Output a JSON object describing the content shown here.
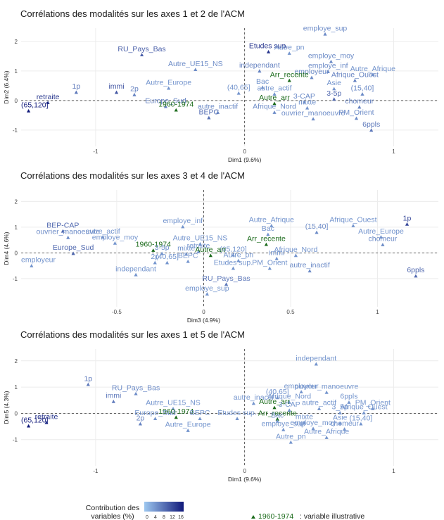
{
  "colors": {
    "low": "#9ec8f0",
    "high": "#10197a",
    "illustrative": "#1a6a1a"
  },
  "legend": {
    "title": "Contribution des variables (%)",
    "ticks": [
      "0",
      "4",
      "8",
      "12",
      "16"
    ],
    "illustrative_marker_label": "1960-1974",
    "illustrative_text": ": variable illustrative"
  },
  "chart_data": [
    {
      "type": "scatter",
      "title": "Corrélations des modalités sur les axes 1 et 2 de l'ACM",
      "xlabel": "Dim1 (9.6%)",
      "ylabel": "Dim2 (6.4%)",
      "xlim": [
        -1.5,
        1.3
      ],
      "ylim": [
        -1.55,
        2.45
      ],
      "xticks": [
        -1,
        0,
        1
      ],
      "yticks": [
        -1,
        0,
        1,
        2
      ],
      "points": [
        {
          "label": "employe_sup",
          "x": 0.54,
          "y": 2.25,
          "c": 0.35
        },
        {
          "label": "Etudes sup.",
          "x": 0.16,
          "y": 1.65,
          "c": 0.85
        },
        {
          "label": "Autre_pn",
          "x": 0.3,
          "y": 1.6,
          "c": 0.3
        },
        {
          "label": "employe_moy",
          "x": 0.58,
          "y": 1.32,
          "c": 0.35
        },
        {
          "label": "RU_Pays_Bas",
          "x": -0.69,
          "y": 1.55,
          "c": 0.6
        },
        {
          "label": "Autre_UE15_NS",
          "x": -0.33,
          "y": 1.05,
          "c": 0.35
        },
        {
          "label": "independant",
          "x": 0.1,
          "y": 1.0,
          "c": 0.4
        },
        {
          "label": "employe_inf",
          "x": 0.56,
          "y": 0.98,
          "c": 0.35
        },
        {
          "label": "Autre_Afrique",
          "x": 0.86,
          "y": 0.88,
          "c": 0.3
        },
        {
          "label": "employeur",
          "x": 0.45,
          "y": 0.78,
          "c": 0.35
        },
        {
          "label": "Arr_recente",
          "x": 0.3,
          "y": 0.68,
          "c": -1
        },
        {
          "label": "Afrique_Ouest",
          "x": 0.74,
          "y": 0.68,
          "c": 0.4
        },
        {
          "label": "Bac",
          "x": 0.12,
          "y": 0.45,
          "c": 0.3
        },
        {
          "label": "Autre_Europe",
          "x": -0.51,
          "y": 0.42,
          "c": 0.3
        },
        {
          "label": "Asie",
          "x": 0.6,
          "y": 0.4,
          "c": 0.3
        },
        {
          "label": "1p",
          "x": -1.13,
          "y": 0.28,
          "c": 0.45
        },
        {
          "label": "immi",
          "x": -0.86,
          "y": 0.28,
          "c": 0.65
        },
        {
          "label": "(40,65]",
          "x": -0.04,
          "y": 0.25,
          "c": 0.3
        },
        {
          "label": "autre_actif",
          "x": 0.2,
          "y": 0.22,
          "c": 0.3
        },
        {
          "label": "(15,40]",
          "x": 0.79,
          "y": 0.22,
          "c": 0.35
        },
        {
          "label": "2p",
          "x": -0.74,
          "y": 0.2,
          "c": 0.4
        },
        {
          "label": "3-5p",
          "x": 0.6,
          "y": 0.05,
          "c": 0.55
        },
        {
          "label": "Autre_arr",
          "x": 0.2,
          "y": -0.1,
          "c": -1
        },
        {
          "label": "3-CAP",
          "x": 0.4,
          "y": -0.05,
          "c": 0.35
        },
        {
          "label": "retraite",
          "x": -1.32,
          "y": -0.07,
          "c": 0.82
        },
        {
          "label": "Europe_Sud",
          "x": -0.53,
          "y": -0.2,
          "c": 0.4
        },
        {
          "label": "chomeur",
          "x": 0.77,
          "y": -0.22,
          "c": 0.4
        },
        {
          "label": "mixte",
          "x": 0.42,
          "y": -0.25,
          "c": 0.3
        },
        {
          "label": "1960-1974",
          "x": -0.46,
          "y": -0.32,
          "c": -1
        },
        {
          "label": "autre_inactif",
          "x": -0.18,
          "y": -0.4,
          "c": 0.35
        },
        {
          "label": "Afrique_Nord",
          "x": 0.2,
          "y": -0.4,
          "c": 0.35
        },
        {
          "label": "(65,120]",
          "x": -1.45,
          "y": -0.35,
          "c": 1.0
        },
        {
          "label": "BEPC",
          "x": -0.24,
          "y": -0.58,
          "c": 0.5
        },
        {
          "label": "ouvrier_manoeuvre",
          "x": 0.46,
          "y": -0.62,
          "c": 0.35
        },
        {
          "label": "PM_Orient",
          "x": 0.75,
          "y": -0.6,
          "c": 0.35
        },
        {
          "label": "6ppls",
          "x": 0.85,
          "y": -1.0,
          "c": 0.45
        }
      ]
    },
    {
      "type": "scatter",
      "title": "Corrélations des modalités sur les axes 3 et 4 de l'ACM",
      "xlabel": "Dim3 (4.9%)",
      "ylabel": "Dim4 (4.6%)",
      "xlim": [
        -1.05,
        1.35
      ],
      "ylim": [
        -2.1,
        2.45
      ],
      "xticks": [
        -0.5,
        0,
        0.5,
        1
      ],
      "yticks": [
        -1,
        0,
        1,
        2
      ],
      "points": [
        {
          "label": "1p",
          "x": 1.17,
          "y": 1.12,
          "c": 0.75
        },
        {
          "label": "Autre_Afrique",
          "x": 0.39,
          "y": 1.06,
          "c": 0.3
        },
        {
          "label": "Afrique_Ouest",
          "x": 0.86,
          "y": 1.06,
          "c": 0.3
        },
        {
          "label": "employe_inf",
          "x": -0.12,
          "y": 1.02,
          "c": 0.3
        },
        {
          "label": "BEP-CAP",
          "x": -0.81,
          "y": 0.85,
          "c": 0.55
        },
        {
          "label": "(15,40]",
          "x": 0.65,
          "y": 0.8,
          "c": 0.35
        },
        {
          "label": "Bac",
          "x": 0.37,
          "y": 0.72,
          "c": 0.3
        },
        {
          "label": "autre_actif",
          "x": -0.58,
          "y": 0.62,
          "c": 0.3
        },
        {
          "label": "Autre_Europe",
          "x": 1.02,
          "y": 0.62,
          "c": 0.3
        },
        {
          "label": "ouvrier_manoeuvre",
          "x": -0.78,
          "y": 0.6,
          "c": 0.35
        },
        {
          "label": "employe_moy",
          "x": -0.51,
          "y": 0.38,
          "c": 0.3
        },
        {
          "label": "Arr_recente",
          "x": 0.36,
          "y": 0.33,
          "c": -1
        },
        {
          "label": "Autre_UE15_NS",
          "x": -0.02,
          "y": 0.35,
          "c": 0.3
        },
        {
          "label": "chomeur",
          "x": 1.03,
          "y": 0.32,
          "c": 0.35
        },
        {
          "label": "1960-1974",
          "x": -0.29,
          "y": 0.1,
          "c": -1
        },
        {
          "label": "Europe_Sud",
          "x": -0.75,
          "y": -0.02,
          "c": 0.55
        },
        {
          "label": "retraite",
          "x": -0.03,
          "y": 0.05,
          "c": 0.3
        },
        {
          "label": "3-5p",
          "x": -0.24,
          "y": -0.02,
          "c": 0.3
        },
        {
          "label": "mixte",
          "x": -0.1,
          "y": -0.05,
          "c": 0.3
        },
        {
          "label": "(65,120]",
          "x": 0.17,
          "y": -0.08,
          "c": 0.3
        },
        {
          "label": "Autre_arr",
          "x": 0.04,
          "y": -0.1,
          "c": -1
        },
        {
          "label": "immi",
          "x": 0.42,
          "y": -0.22,
          "c": 0.3
        },
        {
          "label": "Afrique_Nord",
          "x": 0.53,
          "y": -0.1,
          "c": 0.3
        },
        {
          "label": "BEPC",
          "x": -0.09,
          "y": -0.33,
          "c": 0.3
        },
        {
          "label": "Autre_pn",
          "x": 0.2,
          "y": -0.3,
          "c": 0.3
        },
        {
          "label": "(40,65]",
          "x": -0.21,
          "y": -0.38,
          "c": 0.3
        },
        {
          "label": "2p",
          "x": -0.28,
          "y": -0.38,
          "c": 0.3
        },
        {
          "label": "employeur",
          "x": -0.99,
          "y": -0.5,
          "c": 0.3
        },
        {
          "label": "Etudes sup.",
          "x": 0.17,
          "y": -0.6,
          "c": 0.3
        },
        {
          "label": "PM_Orient",
          "x": 0.38,
          "y": -0.6,
          "c": 0.3
        },
        {
          "label": "independant",
          "x": -0.39,
          "y": -0.85,
          "c": 0.3
        },
        {
          "label": "autre_inactif",
          "x": 0.61,
          "y": -0.7,
          "c": 0.35
        },
        {
          "label": "6ppls",
          "x": 1.22,
          "y": -0.9,
          "c": 0.55
        },
        {
          "label": "RU_Pays_Bas",
          "x": 0.13,
          "y": -1.22,
          "c": 0.45
        },
        {
          "label": "employe_sup",
          "x": 0.02,
          "y": -1.6,
          "c": 0.3
        }
      ]
    },
    {
      "type": "scatter",
      "title": "Corrélations des modalités sur les axes 1 et 5 de l'ACM",
      "xlabel": "Dim1 (9.6%)",
      "ylabel": "Dim5 (4.3%)",
      "xlim": [
        -1.5,
        1.3
      ],
      "ylim": [
        -2.0,
        2.45
      ],
      "xticks": [
        -1,
        0,
        1
      ],
      "yticks": [
        -1,
        0,
        1,
        2
      ],
      "points": [
        {
          "label": "independant",
          "x": 0.48,
          "y": 1.88,
          "c": 0.3
        },
        {
          "label": "1p",
          "x": -1.05,
          "y": 1.1,
          "c": 0.45
        },
        {
          "label": "employeur",
          "x": 0.38,
          "y": 0.82,
          "c": 0.3
        },
        {
          "label": "ouvrier_manoeuvre",
          "x": 0.55,
          "y": 0.8,
          "c": 0.3
        },
        {
          "label": "RU_Pays_Bas",
          "x": -0.73,
          "y": 0.75,
          "c": 0.35
        },
        {
          "label": "(40,65]",
          "x": 0.22,
          "y": 0.6,
          "c": 0.3
        },
        {
          "label": "Afrique_Nord",
          "x": 0.3,
          "y": 0.42,
          "c": 0.3
        },
        {
          "label": "immi",
          "x": -0.88,
          "y": 0.45,
          "c": 0.45
        },
        {
          "label": "6ppls",
          "x": 0.7,
          "y": 0.42,
          "c": 0.3
        },
        {
          "label": "autre_inactif",
          "x": 0.06,
          "y": 0.38,
          "c": 0.3
        },
        {
          "label": "Autre_arr",
          "x": 0.2,
          "y": 0.22,
          "c": -1
        },
        {
          "label": "Autre_UE15_NS",
          "x": -0.48,
          "y": 0.18,
          "c": 0.3
        },
        {
          "label": "PM_Orient",
          "x": 0.86,
          "y": 0.18,
          "c": 0.3
        },
        {
          "label": "autre_actif",
          "x": 0.5,
          "y": 0.18,
          "c": 0.3
        },
        {
          "label": "3-CAP",
          "x": 0.3,
          "y": 0.12,
          "c": 0.3
        },
        {
          "label": "Afrique_Ouest",
          "x": 0.8,
          "y": 0.02,
          "c": 0.3
        },
        {
          "label": "3_5p",
          "x": 0.64,
          "y": 0.02,
          "c": 0.3
        },
        {
          "label": "retraite",
          "x": -1.33,
          "y": -0.35,
          "c": 0.85
        },
        {
          "label": "(65,120]",
          "x": -1.45,
          "y": -0.48,
          "c": 1.0
        },
        {
          "label": "2p",
          "x": -0.7,
          "y": -0.4,
          "c": 0.4
        },
        {
          "label": "1960-1974",
          "x": -0.46,
          "y": -0.15,
          "c": -1
        },
        {
          "label": "Europe_Sud",
          "x": -0.6,
          "y": -0.2,
          "c": 0.3
        },
        {
          "label": "BEPC",
          "x": -0.3,
          "y": -0.2,
          "c": 0.3
        },
        {
          "label": "Etudes sup.",
          "x": -0.05,
          "y": -0.2,
          "c": 0.3
        },
        {
          "label": "Arr_recente",
          "x": 0.22,
          "y": -0.22,
          "c": -1
        },
        {
          "label": "Bac",
          "x": 0.22,
          "y": -0.3,
          "c": 0.3
        },
        {
          "label": "mixte",
          "x": 0.4,
          "y": -0.35,
          "c": 0.3
        },
        {
          "label": "Asie",
          "x": 0.64,
          "y": -0.38,
          "c": 0.3
        },
        {
          "label": "(15,40]",
          "x": 0.78,
          "y": -0.4,
          "c": 0.3
        },
        {
          "label": "employe_moy",
          "x": 0.46,
          "y": -0.58,
          "c": 0.3
        },
        {
          "label": "employe_sup",
          "x": 0.26,
          "y": -0.62,
          "c": 0.3
        },
        {
          "label": "chomeur",
          "x": 0.67,
          "y": -0.6,
          "c": 0.3
        },
        {
          "label": "Autre_Europe",
          "x": -0.38,
          "y": -0.65,
          "c": 0.3
        },
        {
          "label": "Autre_Afrique",
          "x": 0.55,
          "y": -0.92,
          "c": 0.3
        },
        {
          "label": "Autre_pn",
          "x": 0.31,
          "y": -1.1,
          "c": 0.3
        }
      ]
    }
  ]
}
